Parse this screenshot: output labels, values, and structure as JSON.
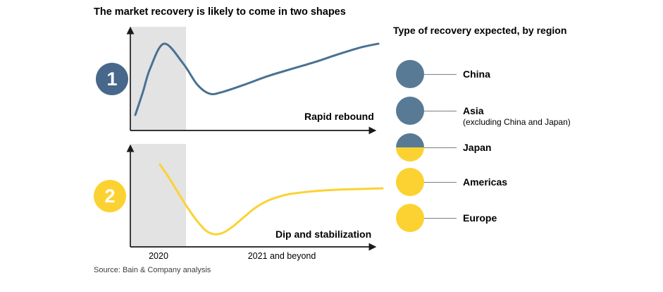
{
  "title": "The market recovery is likely to come in two shapes",
  "source": "Source: Bain & Company analysis",
  "colors": {
    "slate_line": "#4a7191",
    "slate_badge": "#47688a",
    "slate_legend": "#587a94",
    "yellow": "#fcd232",
    "shade": "#e3e3e3",
    "axis": "#1a1a1a",
    "connector": "#7f7f7f",
    "source_text": "#3d3d3d"
  },
  "chart_data": [
    {
      "type": "line",
      "panel_badge": "1",
      "title": "Rapid rebound",
      "series_color": "slate",
      "x_range": [
        0,
        100
      ],
      "ylim": [
        0,
        100
      ],
      "grid": false,
      "shaded_region": {
        "label": "2020",
        "x_range": [
          0,
          22
        ]
      },
      "x_tick_labels": [],
      "points": [
        [
          2,
          15
        ],
        [
          5.1,
          37.4
        ],
        [
          8,
          59.9
        ],
        [
          13.6,
          83.7
        ],
        [
          21.3,
          64.6
        ],
        [
          27,
          44.2
        ],
        [
          32.1,
          35.4
        ],
        [
          37.5,
          37.4
        ],
        [
          46,
          44.2
        ],
        [
          55.4,
          52.4
        ],
        [
          64.8,
          59.2
        ],
        [
          74.4,
          66
        ],
        [
          83.8,
          73.5
        ],
        [
          93.2,
          80.3
        ],
        [
          100,
          83.7
        ]
      ]
    },
    {
      "type": "line",
      "panel_badge": "2",
      "title": "Dip and stabilization",
      "series_color": "yellow",
      "x_range": [
        0,
        100
      ],
      "ylim": [
        0,
        100
      ],
      "grid": false,
      "shaded_region": {
        "label": "2020",
        "x_range": [
          0,
          22
        ]
      },
      "x_tick_labels": [
        "2020",
        "2021 and beyond"
      ],
      "points": [
        [
          11.7,
          79.6
        ],
        [
          15.3,
          66.7
        ],
        [
          18.9,
          52.4
        ],
        [
          22.8,
          37.4
        ],
        [
          26.4,
          25.2
        ],
        [
          30,
          15.6
        ],
        [
          33.3,
          12.2
        ],
        [
          36.7,
          13.6
        ],
        [
          40.3,
          19
        ],
        [
          45,
          28.6
        ],
        [
          49.4,
          37.4
        ],
        [
          54.2,
          44.2
        ],
        [
          58.9,
          48.3
        ],
        [
          63.3,
          51
        ],
        [
          72.8,
          53.7
        ],
        [
          81.9,
          55.1
        ],
        [
          91.1,
          55.8
        ],
        [
          100,
          56.5
        ]
      ]
    }
  ],
  "legend": {
    "heading": "Type of recovery expected, by region",
    "items": [
      {
        "label": "China",
        "marker": "slate",
        "recovery_type": "rapid rebound"
      },
      {
        "label": "Asia",
        "sublabel": "(excluding China and Japan)",
        "marker": "slate",
        "recovery_type": "rapid rebound"
      },
      {
        "label": "Japan",
        "marker": "slate-yellow-split",
        "recovery_type": "mixed"
      },
      {
        "label": "Americas",
        "marker": "yellow",
        "recovery_type": "dip and stabilization"
      },
      {
        "label": "Europe",
        "marker": "yellow",
        "recovery_type": "dip and stabilization"
      }
    ]
  }
}
